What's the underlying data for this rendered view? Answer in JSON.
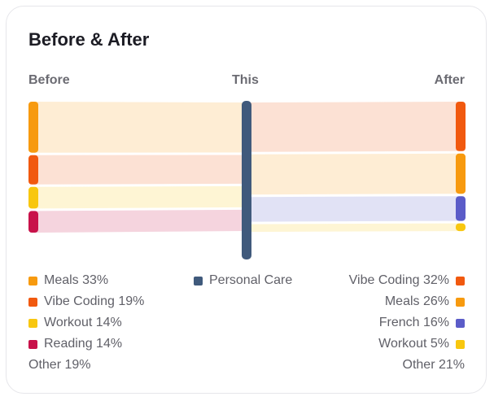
{
  "card": {
    "title": "Before & After",
    "column_labels": {
      "before": "Before",
      "this": "This",
      "after": "After"
    }
  },
  "colors": {
    "meals": "#F79A0F",
    "vibe_coding": "#F1590F",
    "workout": "#F8C70F",
    "reading": "#C8124A",
    "french": "#5B5CC8",
    "personal_care": "#405A7C"
  },
  "legend": {
    "before": [
      {
        "label": "Meals 33%",
        "color": "#F79A0F"
      },
      {
        "label": "Vibe Coding 19%",
        "color": "#F1590F"
      },
      {
        "label": "Workout 14%",
        "color": "#F8C70F"
      },
      {
        "label": "Reading 14%",
        "color": "#C8124A"
      }
    ],
    "before_other": "Other 19%",
    "center": {
      "label": "Personal Care",
      "color": "#405A7C"
    },
    "after": [
      {
        "label": "Vibe Coding 32%",
        "color": "#F1590F"
      },
      {
        "label": "Meals 26%",
        "color": "#F79A0F"
      },
      {
        "label": "French 16%",
        "color": "#5B5CC8"
      },
      {
        "label": "Workout 5%",
        "color": "#F8C70F"
      }
    ],
    "after_other": "Other 21%"
  },
  "flow": {
    "before": [
      {
        "activity": "Meals",
        "percent": 33,
        "color": "#F79A0F"
      },
      {
        "activity": "Vibe Coding",
        "percent": 19,
        "color": "#F1590F"
      },
      {
        "activity": "Workout",
        "percent": 14,
        "color": "#F8C70F"
      },
      {
        "activity": "Reading",
        "percent": 14,
        "color": "#C8124A"
      }
    ],
    "after": [
      {
        "activity": "Vibe Coding",
        "percent": 32,
        "color": "#F1590F"
      },
      {
        "activity": "Meals",
        "percent": 26,
        "color": "#F79A0F"
      },
      {
        "activity": "French",
        "percent": 16,
        "color": "#5B5CC8"
      },
      {
        "activity": "Workout",
        "percent": 5,
        "color": "#F8C70F"
      }
    ],
    "center_color": "#405A7C"
  }
}
